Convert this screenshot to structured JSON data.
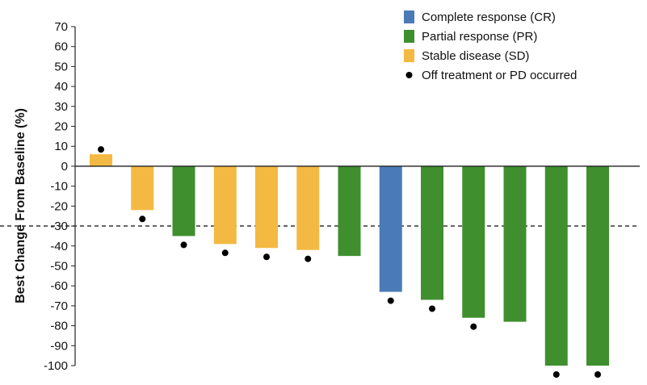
{
  "chart_data": {
    "type": "bar",
    "title": "",
    "xlabel": "",
    "ylabel": "Best Change From Baseline (%)",
    "ylim": [
      -100,
      70
    ],
    "yticks": [
      70,
      60,
      50,
      40,
      30,
      20,
      10,
      0,
      -10,
      -20,
      -30,
      -40,
      -50,
      -60,
      -70,
      -80,
      -90,
      -100
    ],
    "reference_line": {
      "value": -30,
      "style": "dashed"
    },
    "grid": false,
    "legend_position": "top-right",
    "colors": {
      "CR": "#4a7bb7",
      "PR": "#3f8f2f",
      "SD": "#f4b942",
      "marker": "#000000"
    },
    "legend": [
      {
        "key": "CR",
        "label": "Complete response (CR)",
        "kind": "swatch"
      },
      {
        "key": "PR",
        "label": "Partial response (PR)",
        "kind": "swatch"
      },
      {
        "key": "SD",
        "label": "Stable disease (SD)",
        "kind": "swatch"
      },
      {
        "key": "marker",
        "label": "Off treatment or PD occurred",
        "kind": "dot"
      }
    ],
    "bars": [
      {
        "value": 6,
        "response": "SD",
        "off_treatment": true
      },
      {
        "value": -22,
        "response": "SD",
        "off_treatment": true
      },
      {
        "value": -35,
        "response": "PR",
        "off_treatment": true
      },
      {
        "value": -39,
        "response": "SD",
        "off_treatment": true
      },
      {
        "value": -41,
        "response": "SD",
        "off_treatment": true
      },
      {
        "value": -42,
        "response": "SD",
        "off_treatment": true
      },
      {
        "value": -45,
        "response": "PR",
        "off_treatment": false
      },
      {
        "value": -63,
        "response": "CR",
        "off_treatment": true
      },
      {
        "value": -67,
        "response": "PR",
        "off_treatment": true
      },
      {
        "value": -76,
        "response": "PR",
        "off_treatment": true
      },
      {
        "value": -78,
        "response": "PR",
        "off_treatment": false
      },
      {
        "value": -100,
        "response": "PR",
        "off_treatment": true
      },
      {
        "value": -100,
        "response": "PR",
        "off_treatment": true
      }
    ]
  }
}
